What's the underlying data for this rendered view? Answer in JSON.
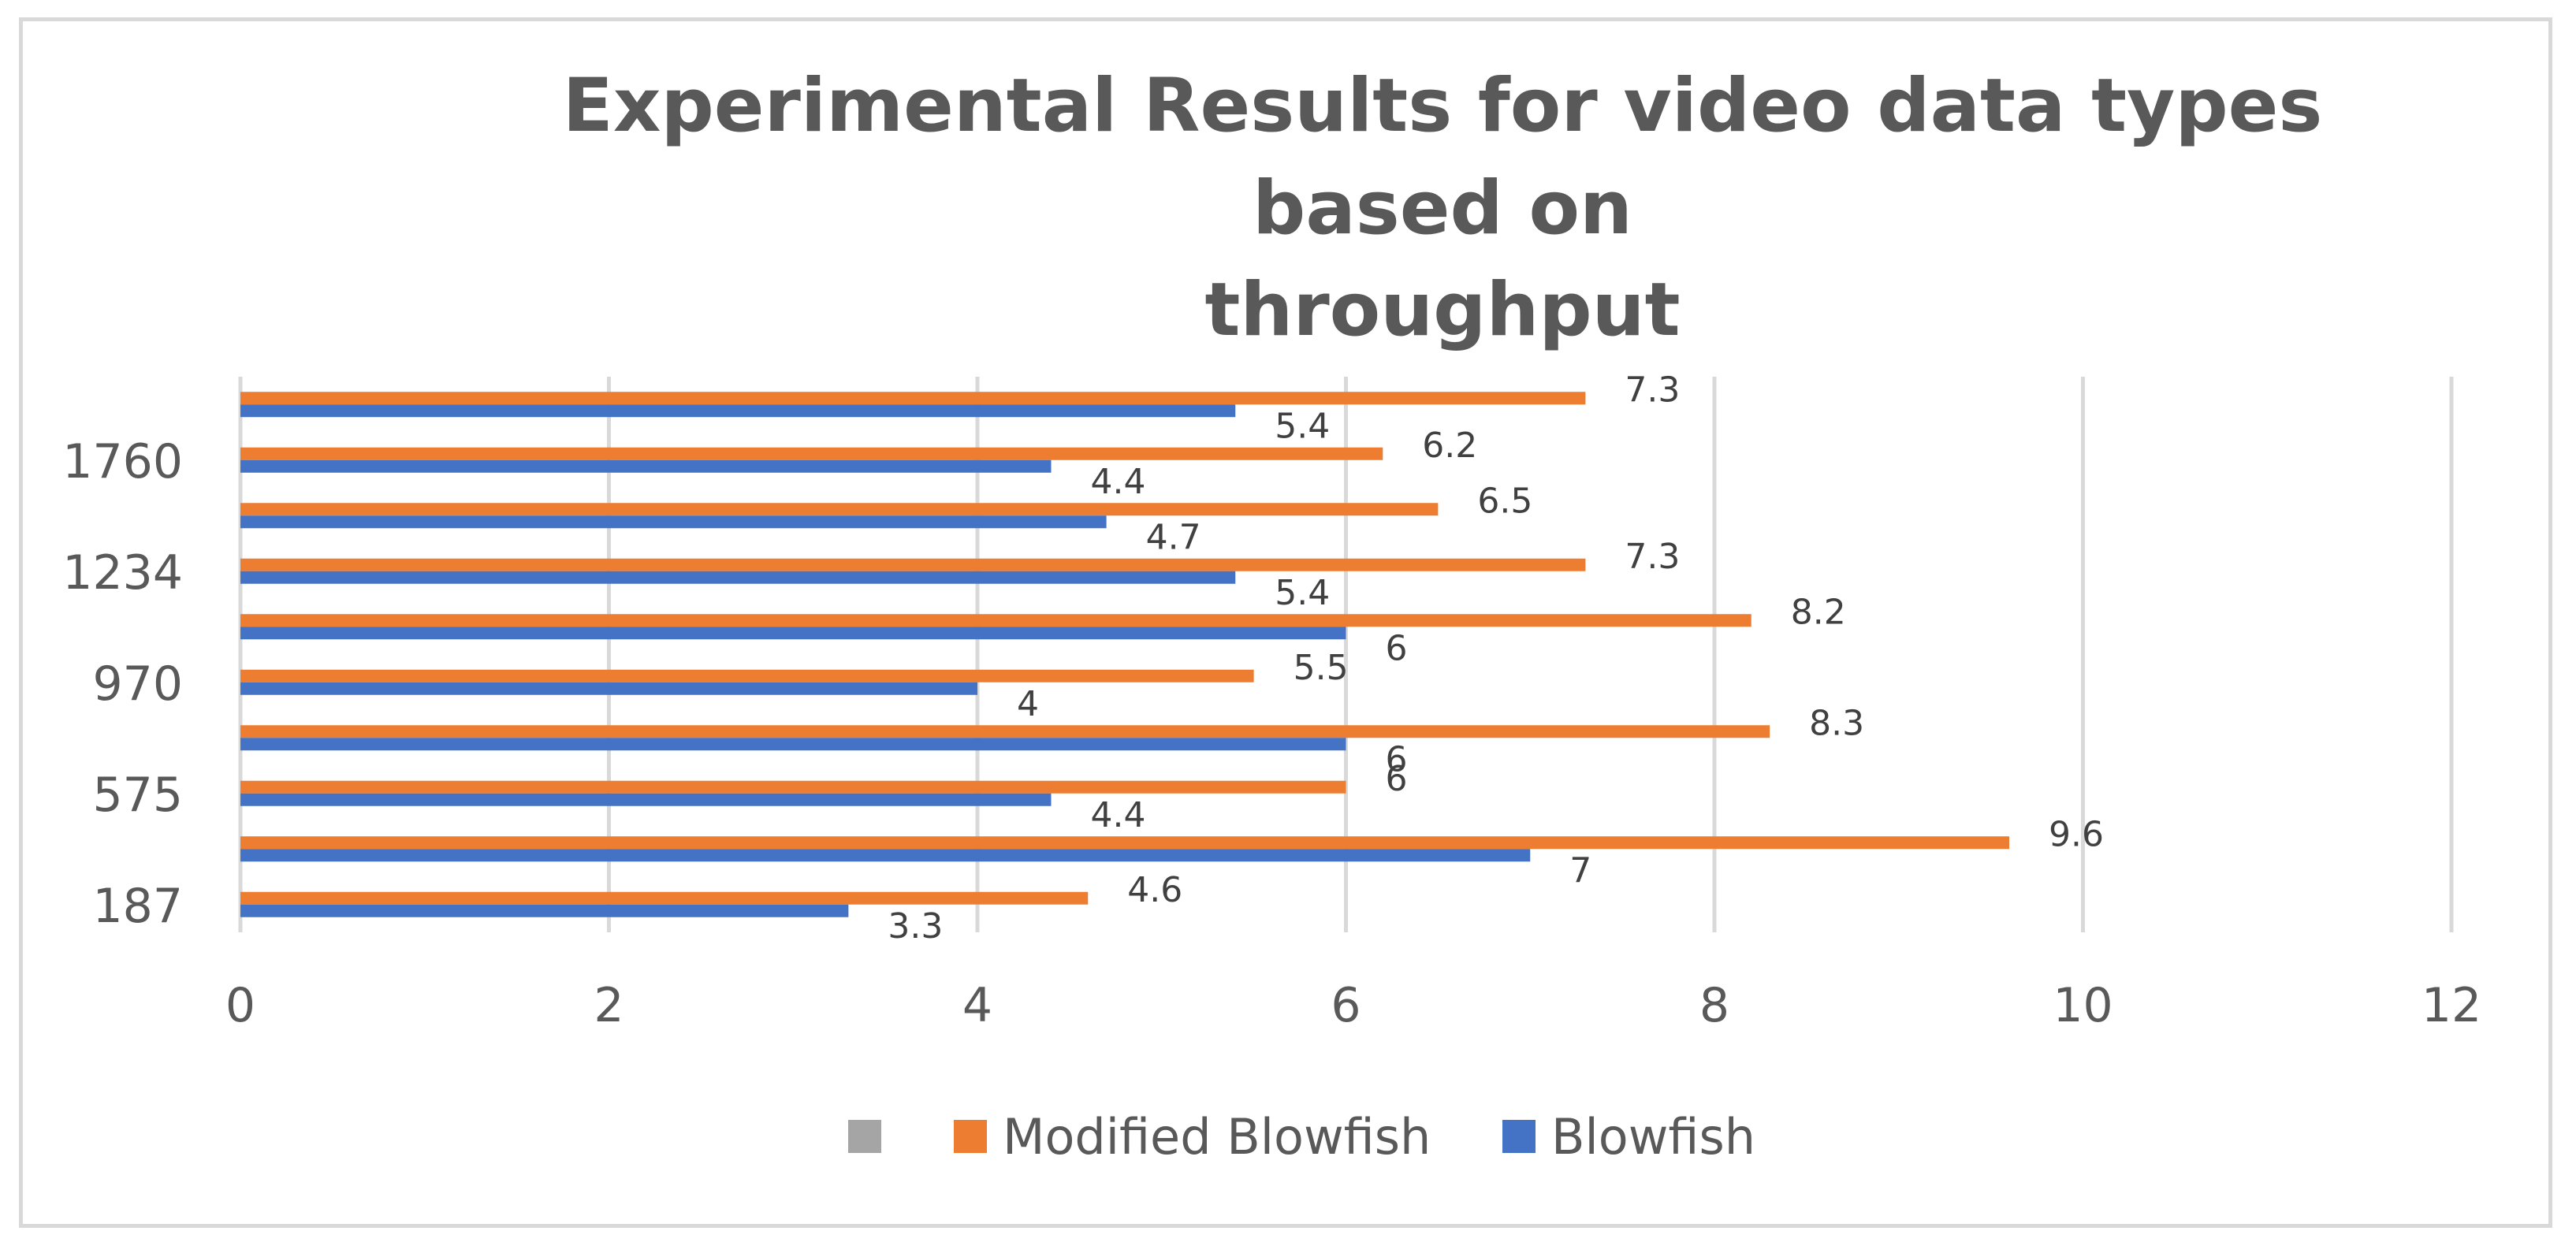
{
  "chart_data": {
    "type": "bar",
    "orientation": "horizontal",
    "title": "Experimental Results for video data types based on throughput",
    "title_lines": [
      "Experimental Results for video data types based on",
      "throughput"
    ],
    "categories": [
      "187",
      "",
      "575",
      "",
      "970",
      "",
      "1234",
      "",
      "1760",
      ""
    ],
    "series": [
      {
        "name": "Blowfish",
        "color": "#4472c4",
        "values": [
          3.3,
          7,
          4.4,
          6,
          4,
          6,
          5.4,
          4.7,
          4.4,
          5.4
        ]
      },
      {
        "name": "Modified Blowfish",
        "color": "#ed7d31",
        "values": [
          4.6,
          9.6,
          6,
          8.3,
          5.5,
          8.2,
          7.3,
          6.5,
          6.2,
          7.3
        ]
      }
    ],
    "legend_extra_swatch": {
      "name": "",
      "color": "#a5a5a5"
    },
    "xlim": [
      0,
      12
    ],
    "x_ticks": [
      "0",
      "2",
      "4",
      "6",
      "8",
      "10",
      "12"
    ],
    "grid": true,
    "legend_position": "bottom"
  }
}
